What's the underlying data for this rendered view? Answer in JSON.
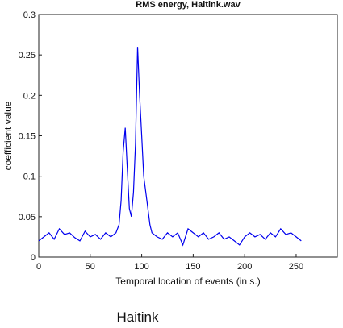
{
  "chart_data": {
    "type": "line",
    "title": "RMS energy, Haitink.wav",
    "xlabel": "Temporal location of events (in s.)",
    "ylabel": "coefficient value",
    "xlim": [
      0,
      290
    ],
    "ylim": [
      0,
      0.3
    ],
    "xticks": [
      0,
      50,
      100,
      150,
      200,
      250
    ],
    "yticks": [
      0,
      0.05,
      0.1,
      0.15,
      0.2,
      0.25,
      0.3
    ],
    "xtick_labels": [
      "0",
      "50",
      "100",
      "150",
      "200",
      "250"
    ],
    "ytick_labels": [
      "0",
      "0.05",
      "0.1",
      "0.15",
      "0.2",
      "0.25",
      "0.3"
    ],
    "grid": false,
    "line_color": "#0000ee",
    "series": [
      {
        "x": [
          0,
          5,
          10,
          15,
          20,
          25,
          30,
          35,
          40,
          45,
          50,
          55,
          60,
          65,
          70,
          75,
          78,
          80,
          82,
          84,
          86,
          88,
          90,
          92,
          94,
          96,
          98,
          100,
          102,
          105,
          108,
          110,
          115,
          120,
          125,
          130,
          135,
          140,
          145,
          150,
          155,
          160,
          165,
          170,
          175,
          180,
          185,
          190,
          195,
          200,
          205,
          210,
          215,
          220,
          225,
          230,
          235,
          240,
          245,
          250,
          255
        ],
        "y": [
          0.02,
          0.025,
          0.03,
          0.022,
          0.035,
          0.028,
          0.03,
          0.024,
          0.02,
          0.032,
          0.025,
          0.028,
          0.022,
          0.03,
          0.025,
          0.03,
          0.04,
          0.07,
          0.13,
          0.16,
          0.11,
          0.06,
          0.05,
          0.08,
          0.14,
          0.26,
          0.2,
          0.15,
          0.1,
          0.07,
          0.04,
          0.03,
          0.025,
          0.022,
          0.03,
          0.025,
          0.03,
          0.015,
          0.035,
          0.03,
          0.025,
          0.03,
          0.022,
          0.025,
          0.03,
          0.022,
          0.025,
          0.02,
          0.015,
          0.025,
          0.03,
          0.025,
          0.028,
          0.022,
          0.03,
          0.025,
          0.035,
          0.028,
          0.03,
          0.025,
          0.02
        ]
      }
    ]
  },
  "caption": "Haitink"
}
